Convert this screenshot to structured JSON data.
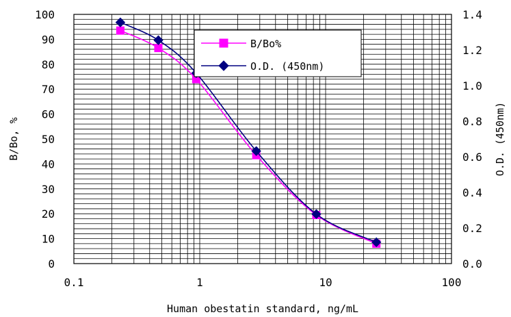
{
  "chart_data": {
    "type": "line",
    "x_scale": "log",
    "xlim": [
      0.1,
      100
    ],
    "ylim_left": [
      0,
      100
    ],
    "ylim_right": [
      0,
      1.4
    ],
    "xlabel": "Human obestatin standard, ng/mL",
    "ylabel_left": "B/Bo, %",
    "ylabel_right": "O.D. (450nm)",
    "x_tick_labels": [
      "0.1",
      "1",
      "10",
      "100"
    ],
    "y_left_tick_labels": [
      "0",
      "10",
      "20",
      "30",
      "40",
      "50",
      "60",
      "70",
      "80",
      "90",
      "100"
    ],
    "y_right_tick_labels": [
      "0.0",
      "0.2",
      "0.4",
      "0.6",
      "0.8",
      "1.0",
      "1.2",
      "1.4"
    ],
    "grid": true,
    "legend_position": "top-right",
    "series": [
      {
        "name": "B/Bo%",
        "axis": "left",
        "color": "#ff00ff",
        "marker": "square",
        "x": [
          0.234,
          0.469,
          0.938,
          2.813,
          8.438,
          25.313
        ],
        "y": [
          93.5,
          86.5,
          74,
          43.5,
          19.5,
          8
        ]
      },
      {
        "name": "O.D. (450nm)",
        "axis": "right",
        "color": "#000080",
        "marker": "diamond",
        "x": [
          0.234,
          0.469,
          0.938,
          2.813,
          8.438,
          25.313
        ],
        "y": [
          1.355,
          1.255,
          1.07,
          0.632,
          0.278,
          0.12
        ]
      }
    ]
  }
}
